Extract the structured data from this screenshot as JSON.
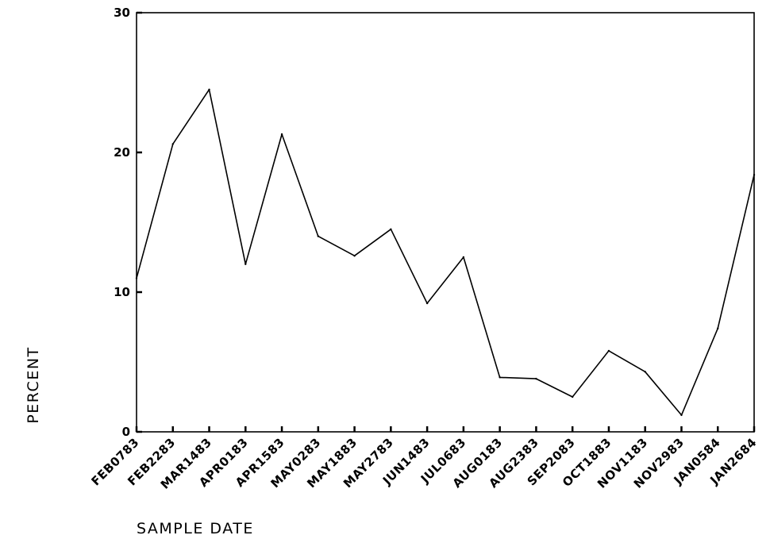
{
  "chart_data": {
    "type": "line",
    "title": "",
    "xlabel": "SAMPLE DATE",
    "ylabel": "PERCENT",
    "categories": [
      "FEB0783",
      "FEB2283",
      "MAR1483",
      "APR0183",
      "APR1583",
      "MAY0283",
      "MAY1883",
      "MAY2783",
      "JUN1483",
      "JUL0683",
      "AUG0183",
      "AUG2383",
      "SEP2083",
      "OCT1883",
      "NOV1183",
      "NOV2983",
      "JAN0584",
      "JAN2684"
    ],
    "series": [
      {
        "values": [
          11.0,
          20.6,
          24.5,
          12.0,
          21.3,
          14.0,
          12.6,
          14.5,
          9.2,
          12.5,
          3.9,
          3.8,
          2.5,
          5.8,
          4.3,
          1.2,
          7.4,
          18.4
        ]
      }
    ],
    "yticks": [
      "0",
      "10",
      "20",
      "30"
    ],
    "ylim": [
      0,
      30
    ],
    "grid": false,
    "line_color": "#000000"
  }
}
